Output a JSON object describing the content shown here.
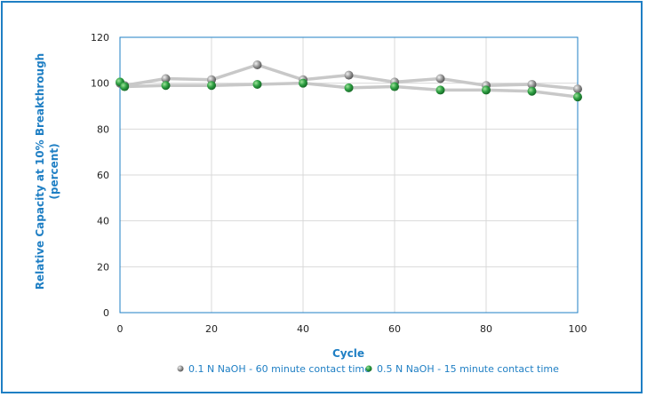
{
  "chart_data": {
    "type": "line",
    "title": "",
    "xlabel": "Cycle",
    "ylabel_line1": "Relative Capacity at 10% Breakthrough",
    "ylabel_line2": "(percent)",
    "xlim": [
      0,
      100
    ],
    "ylim": [
      0,
      120
    ],
    "xticks": [
      0,
      20,
      40,
      60,
      80,
      100
    ],
    "yticks": [
      0,
      20,
      40,
      60,
      80,
      100,
      120
    ],
    "grid": true,
    "legend_position": "bottom",
    "series": [
      {
        "name": "0.1 N NaOH - 60 minute contact time",
        "color": "#9a9a9a",
        "x": [
          0,
          1,
          10,
          20,
          30,
          40,
          50,
          60,
          70,
          80,
          90,
          100
        ],
        "y": [
          100,
          99,
          102,
          101.5,
          108,
          101.5,
          103.5,
          100.5,
          102,
          99,
          99.5,
          97.5
        ]
      },
      {
        "name": "0.5 N NaOH - 15 minute contact time",
        "color": "#2ea043",
        "x": [
          0,
          1,
          10,
          20,
          30,
          40,
          50,
          60,
          70,
          80,
          90,
          100
        ],
        "y": [
          100.5,
          98.5,
          99,
          99,
          99.5,
          100,
          98,
          98.5,
          97,
          97,
          96.5,
          94
        ]
      }
    ]
  }
}
